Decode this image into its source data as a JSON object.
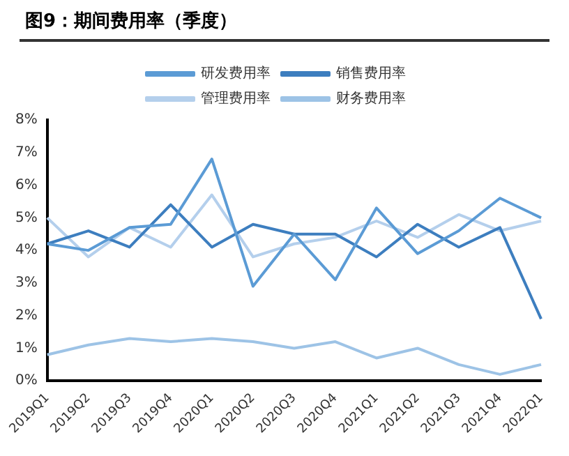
{
  "chart_data": {
    "type": "line",
    "title": "图9：期间费用率（季度）",
    "categories": [
      "2019Q1",
      "2019Q2",
      "2019Q3",
      "2019Q4",
      "2020Q1",
      "2020Q2",
      "2020Q3",
      "2020Q4",
      "2021Q1",
      "2021Q2",
      "2021Q3",
      "2021Q4",
      "2022Q1"
    ],
    "series": [
      {
        "name": "研发费用率",
        "color": "#5b9bd5",
        "values": [
          4.2,
          4.0,
          4.7,
          4.8,
          6.8,
          2.9,
          4.5,
          3.1,
          5.3,
          3.9,
          4.6,
          5.6,
          5.0
        ]
      },
      {
        "name": "销售费用率",
        "color": "#3d7ebf",
        "values": [
          4.2,
          4.6,
          4.1,
          5.4,
          4.1,
          4.8,
          4.5,
          4.5,
          3.8,
          4.8,
          4.1,
          4.7,
          1.9
        ]
      },
      {
        "name": "管理费用率",
        "color": "#b4cfec",
        "values": [
          5.0,
          3.8,
          4.7,
          4.1,
          5.7,
          3.8,
          4.2,
          4.4,
          4.9,
          4.4,
          5.1,
          4.6,
          4.9
        ]
      },
      {
        "name": "财务费用率",
        "color": "#9dc3e6",
        "values": [
          0.8,
          1.1,
          1.3,
          1.2,
          1.3,
          1.2,
          1.0,
          1.2,
          0.7,
          1.0,
          0.5,
          0.2,
          0.5
        ]
      }
    ],
    "ylim": [
      0,
      8
    ],
    "yticks": [
      {
        "value": 0,
        "label": "0%"
      },
      {
        "value": 1,
        "label": "1%"
      },
      {
        "value": 2,
        "label": "2%"
      },
      {
        "value": 3,
        "label": "3%"
      },
      {
        "value": 4,
        "label": "4%"
      },
      {
        "value": 5,
        "label": "5%"
      },
      {
        "value": 6,
        "label": "6%"
      },
      {
        "value": 7,
        "label": "7%"
      },
      {
        "value": 8,
        "label": "8%"
      }
    ],
    "grid": false,
    "legend": "top",
    "marker": "none",
    "line_style": "solid"
  }
}
